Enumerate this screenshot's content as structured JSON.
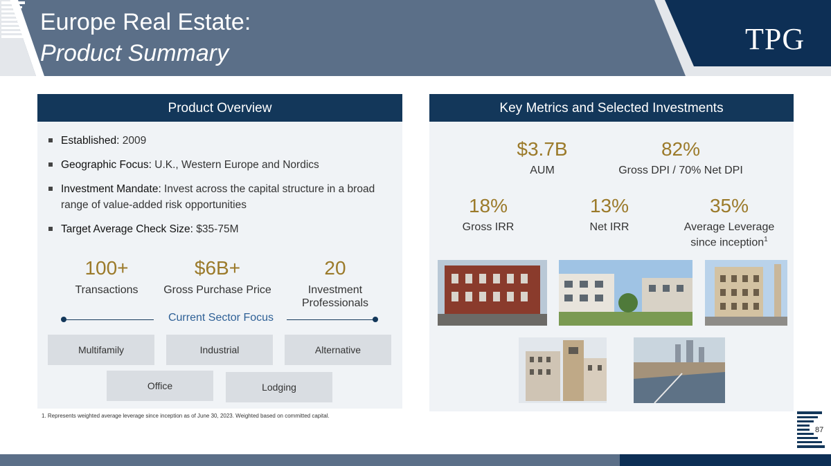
{
  "header": {
    "title_line1": "Europe Real Estate:",
    "title_line2": "Product Summary",
    "logo_text": "TPG",
    "colors": {
      "band": "#5b6f88",
      "navy": "#13375a",
      "gold": "#9b7a2a"
    }
  },
  "overview": {
    "heading": "Product Overview",
    "bullets": [
      {
        "label": "Established:",
        "text": " 2009"
      },
      {
        "label": "Geographic Focus:",
        "text": " U.K., Western Europe and Nordics"
      },
      {
        "label": "Investment Mandate:",
        "text": " Invest across the capital structure in a broad range of value-added risk opportunities"
      },
      {
        "label": "Target Average Check Size:",
        "text": " $35-75M"
      }
    ],
    "stats": [
      {
        "value": "100+",
        "label": "Transactions"
      },
      {
        "value": "$6B+",
        "label": "Gross Purchase Price"
      },
      {
        "value": "20",
        "label": "Investment Professionals"
      }
    ],
    "focus_label": "Current Sector Focus",
    "sectors": [
      "Multifamily",
      "Industrial",
      "Alternative",
      "Office",
      "Lodging"
    ]
  },
  "metrics": {
    "heading": "Key Metrics and Selected Investments",
    "items": [
      {
        "value": "$3.7B",
        "label": "AUM"
      },
      {
        "value": "82%",
        "label": "Gross DPI / 70% Net DPI"
      },
      {
        "value": "18%",
        "label": "Gross IRR"
      },
      {
        "value": "13%",
        "label": "Net IRR"
      },
      {
        "value": "35%",
        "label": "Average Leverage since inception",
        "sup": "1"
      }
    ],
    "photos": [
      "red-brick-building-photo",
      "modern-apartments-photo",
      "classic-corner-building-photo",
      "tower-building-photo",
      "london-skyline-photo"
    ]
  },
  "footnote": "1. Represents weighted average leverage since inception as of June 30, 2023. Weighted based on committed capital.",
  "page_number": "87"
}
